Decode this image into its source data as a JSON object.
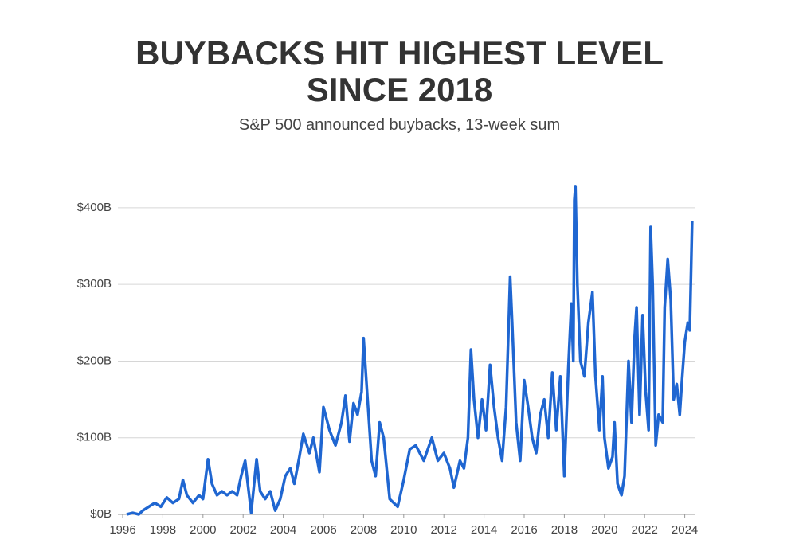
{
  "chart_data": {
    "type": "line",
    "title": "BUYBACKS HIT HIGHEST LEVEL SINCE 2018",
    "subtitle": "S&P 500 announced buybacks, 13-week sum",
    "color": "#1f66d1",
    "x": [
      1996.2,
      1996.5,
      1996.8,
      1997.0,
      1997.3,
      1997.6,
      1997.9,
      1998.2,
      1998.5,
      1998.8,
      1999.0,
      1999.2,
      1999.5,
      1999.8,
      2000.0,
      2000.25,
      2000.45,
      2000.7,
      2000.95,
      2001.2,
      2001.45,
      2001.7,
      2001.9,
      2002.1,
      2002.4,
      2002.67,
      2002.85,
      2003.1,
      2003.35,
      2003.6,
      2003.85,
      2004.1,
      2004.35,
      2004.55,
      2004.8,
      2005.0,
      2005.3,
      2005.5,
      2005.8,
      2006.0,
      2006.3,
      2006.6,
      2006.9,
      2007.1,
      2007.3,
      2007.5,
      2007.7,
      2007.9,
      2008.0,
      2008.2,
      2008.4,
      2008.6,
      2008.8,
      2009.0,
      2009.3,
      2009.7,
      2010.0,
      2010.3,
      2010.6,
      2011.0,
      2011.4,
      2011.7,
      2012.0,
      2012.3,
      2012.5,
      2012.8,
      2013.0,
      2013.2,
      2013.35,
      2013.5,
      2013.7,
      2013.9,
      2014.1,
      2014.3,
      2014.5,
      2014.7,
      2014.9,
      2015.1,
      2015.3,
      2015.4,
      2015.6,
      2015.8,
      2016.0,
      2016.2,
      2016.4,
      2016.6,
      2016.8,
      2017.0,
      2017.2,
      2017.4,
      2017.6,
      2017.8,
      2018.0,
      2018.2,
      2018.35,
      2018.45,
      2018.5,
      2018.55,
      2018.65,
      2018.8,
      2019.0,
      2019.2,
      2019.4,
      2019.55,
      2019.75,
      2019.9,
      2020.0,
      2020.2,
      2020.4,
      2020.5,
      2020.65,
      2020.85,
      2021.0,
      2021.2,
      2021.35,
      2021.5,
      2021.6,
      2021.75,
      2021.9,
      2022.05,
      2022.2,
      2022.3,
      2022.4,
      2022.55,
      2022.7,
      2022.9,
      2023.0,
      2023.15,
      2023.3,
      2023.45,
      2023.6,
      2023.75,
      2023.85,
      2024.0,
      2024.15,
      2024.25,
      2024.37
    ],
    "values": [
      0,
      2,
      0,
      5,
      10,
      15,
      10,
      22,
      15,
      20,
      45,
      25,
      15,
      25,
      20,
      72,
      40,
      25,
      30,
      25,
      30,
      25,
      50,
      70,
      2,
      72,
      30,
      20,
      30,
      5,
      20,
      50,
      60,
      40,
      75,
      105,
      80,
      100,
      55,
      140,
      110,
      90,
      120,
      155,
      95,
      145,
      130,
      160,
      230,
      150,
      70,
      50,
      120,
      100,
      20,
      10,
      45,
      85,
      90,
      70,
      100,
      70,
      80,
      60,
      35,
      70,
      60,
      100,
      215,
      150,
      100,
      150,
      110,
      195,
      140,
      100,
      70,
      140,
      310,
      250,
      120,
      70,
      175,
      140,
      100,
      80,
      130,
      150,
      100,
      185,
      110,
      180,
      50,
      190,
      275,
      200,
      410,
      428,
      300,
      200,
      180,
      250,
      290,
      180,
      110,
      180,
      100,
      60,
      75,
      120,
      40,
      25,
      50,
      200,
      120,
      230,
      270,
      130,
      260,
      160,
      110,
      375,
      300,
      90,
      130,
      120,
      270,
      333,
      280,
      150,
      170,
      130,
      170,
      225,
      250,
      240,
      383
    ],
    "xlim": [
      1996,
      2024.4
    ],
    "xticks": [
      1996,
      1998,
      2000,
      2002,
      2004,
      2006,
      2008,
      2010,
      2012,
      2014,
      2016,
      2018,
      2020,
      2022,
      2024
    ],
    "ylim": [
      0,
      430
    ],
    "yticks": [
      {
        "value": 0,
        "label": "$0B"
      },
      {
        "value": 100,
        "label": "$100B"
      },
      {
        "value": 200,
        "label": "$200B"
      },
      {
        "value": 300,
        "label": "$300B"
      },
      {
        "value": 400,
        "label": "$400B"
      }
    ],
    "grid": true
  }
}
